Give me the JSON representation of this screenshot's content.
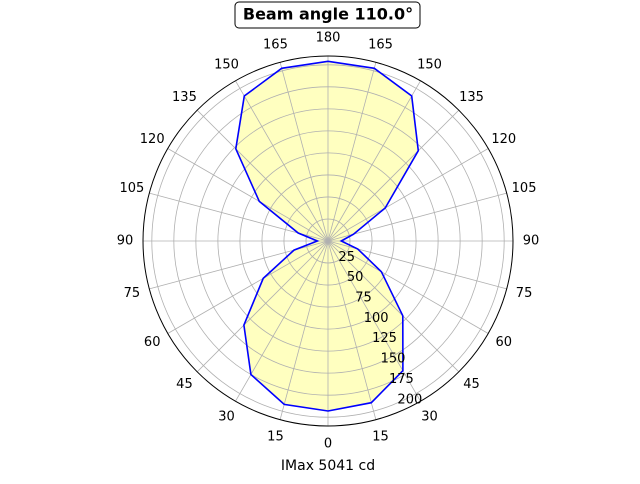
{
  "chart_data": {
    "type": "polar",
    "title": "Beam angle 110.0°",
    "xlabel": "IMax 5041 cd",
    "theta": [
      0,
      15,
      30,
      45,
      60,
      75,
      90,
      105,
      120,
      135,
      150,
      165,
      180,
      195,
      210,
      225,
      240,
      255,
      270,
      285,
      300,
      315,
      330,
      345
    ],
    "values": [
      193,
      190,
      170,
      120,
      70,
      35,
      15,
      30,
      75,
      145,
      190,
      203,
      204,
      203,
      190,
      148,
      90,
      35,
      12,
      40,
      85,
      135,
      175,
      192
    ],
    "color": "#0000ff",
    "fill": "#ffffc0",
    "rlim": [
      0,
      210
    ],
    "rticks": [
      25,
      50,
      75,
      100,
      125,
      150,
      175,
      200
    ],
    "thetaticks": [
      0,
      15,
      30,
      45,
      60,
      75,
      90,
      105,
      120,
      135,
      150,
      165,
      180,
      {
        "value": 195,
        "label": "165"
      },
      {
        "value": 210,
        "label": "150"
      },
      {
        "value": 225,
        "label": "135"
      },
      {
        "value": 240,
        "label": "120"
      },
      {
        "value": 255,
        "label": "105"
      },
      {
        "value": 270,
        "label": "90"
      },
      {
        "value": 285,
        "label": "75"
      },
      {
        "value": 300,
        "label": "60"
      },
      {
        "value": 315,
        "label": "45"
      },
      {
        "value": 330,
        "label": "30"
      },
      {
        "value": 345,
        "label": "15"
      }
    ],
    "grid": true
  }
}
